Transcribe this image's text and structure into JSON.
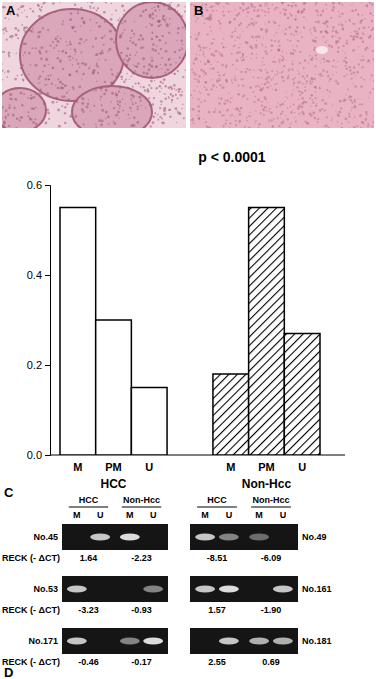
{
  "panel_labels": [
    "A",
    "B",
    "C",
    "D"
  ],
  "chart_data": {
    "type": "bar",
    "title": "p < 0.0001",
    "categories": [
      "M",
      "PM",
      "U"
    ],
    "series": [
      {
        "name": "HCC",
        "color": "#000000",
        "values": [
          0.55,
          0.3,
          0.15
        ]
      },
      {
        "name": "Non-Hcc",
        "color": "#000000",
        "values": [
          0.18,
          0.55,
          0.27
        ]
      }
    ],
    "ylim": [
      0,
      0.6
    ],
    "yticks": [
      {
        "value": 0,
        "label": "0.0"
      },
      0.2,
      0.4,
      0.6
    ]
  },
  "gels": {
    "groups": [
      "HCC",
      "Non-Hcc"
    ],
    "lanes": [
      "M",
      "U"
    ],
    "value_label": "RECK (- ΔCT)",
    "columns": [
      [
        {
          "name": "No.45",
          "rdct": [
            1.64,
            -2.23
          ],
          "bands": [
            0,
            0.8,
            0.9,
            0
          ]
        },
        {
          "name": "No.53",
          "rdct": [
            -3.23,
            -0.93
          ],
          "bands": [
            0.8,
            0,
            0,
            0.5
          ]
        },
        {
          "name": "No.171",
          "rdct": [
            -0.46,
            -0.17
          ],
          "bands": [
            0.8,
            0,
            0.5,
            0.9
          ]
        }
      ],
      [
        {
          "name": "No.49",
          "rdct": [
            -8.51,
            -6.09
          ],
          "bands": [
            0.8,
            0.5,
            0.4,
            0
          ]
        },
        {
          "name": "No.161",
          "rdct": [
            1.57,
            {
              "value": -1.9,
              "label": "-1.90"
            }
          ],
          "bands": [
            0.8,
            0.9,
            0,
            0.8
          ]
        },
        {
          "name": "No.181",
          "rdct": [
            2.55,
            0.69
          ],
          "bands": [
            0,
            0.8,
            0.7,
            0.7
          ]
        }
      ]
    ]
  }
}
